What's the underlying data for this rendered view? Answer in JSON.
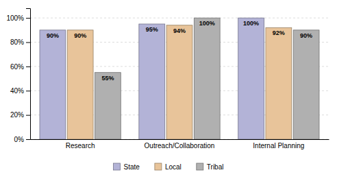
{
  "chart_data": {
    "type": "bar",
    "categories": [
      "Research",
      "Outreach/Collaboration",
      "Internal Planning"
    ],
    "series": [
      {
        "name": "State",
        "color": "#b3b3d7",
        "values": [
          90,
          95,
          100
        ],
        "value_labels": [
          "90%",
          "95%",
          "100%"
        ]
      },
      {
        "name": "Local",
        "color": "#e8c49a",
        "values": [
          90,
          94,
          92
        ],
        "value_labels": [
          "90%",
          "94%",
          "92%"
        ]
      },
      {
        "name": "Tribal",
        "color": "#b0b0b0",
        "values": [
          55,
          100,
          90
        ],
        "value_labels": [
          "55%",
          "100%",
          "90%"
        ]
      }
    ],
    "ylim": [
      0,
      108
    ],
    "yticks": [
      {
        "value": 0,
        "label": "0%"
      },
      {
        "value": 20,
        "label": "20%"
      },
      {
        "value": 40,
        "label": "40%"
      },
      {
        "value": 60,
        "label": "60%"
      },
      {
        "value": 80,
        "label": "80%"
      },
      {
        "value": 100,
        "label": "100%"
      }
    ],
    "grid": true,
    "data_labels": true,
    "legend": "bottom"
  }
}
